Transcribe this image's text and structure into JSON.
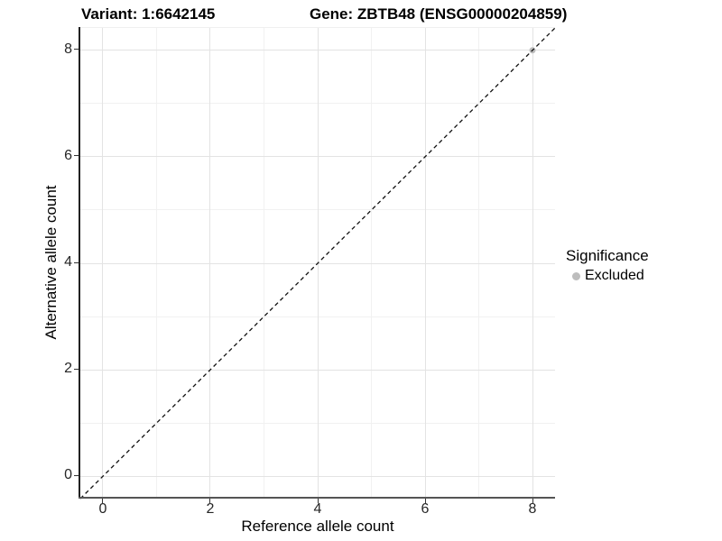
{
  "chart_data": {
    "type": "scatter",
    "titles": {
      "left": "Variant: 1:6642145",
      "right": "Gene: ZBTB48 (ENSG00000204859)"
    },
    "xlabel": "Reference allele count",
    "ylabel": "Alternative allele count",
    "xlim": [
      -0.42,
      8.42
    ],
    "ylim": [
      -0.42,
      8.42
    ],
    "x_major_ticks": [
      0,
      2,
      4,
      6,
      8
    ],
    "y_major_ticks": [
      0,
      2,
      4,
      6,
      8
    ],
    "x_minor_ticks": [
      1,
      3,
      5,
      7
    ],
    "y_minor_ticks": [
      1,
      3,
      5,
      7
    ],
    "grid": {
      "on": true,
      "major_color": "#e3e3e3",
      "minor_color": "#f1f1f1"
    },
    "identity_line": {
      "equation": "y = x",
      "style": "dashed",
      "color": "#111111"
    },
    "series": [
      {
        "name": "Excluded",
        "color": "#bdbdbd",
        "points": [
          {
            "x": 8,
            "y": 8
          }
        ]
      }
    ],
    "legend": {
      "title": "Significance",
      "position": "right",
      "items": [
        {
          "label": "Excluded",
          "color": "#bdbdbd"
        }
      ]
    }
  }
}
